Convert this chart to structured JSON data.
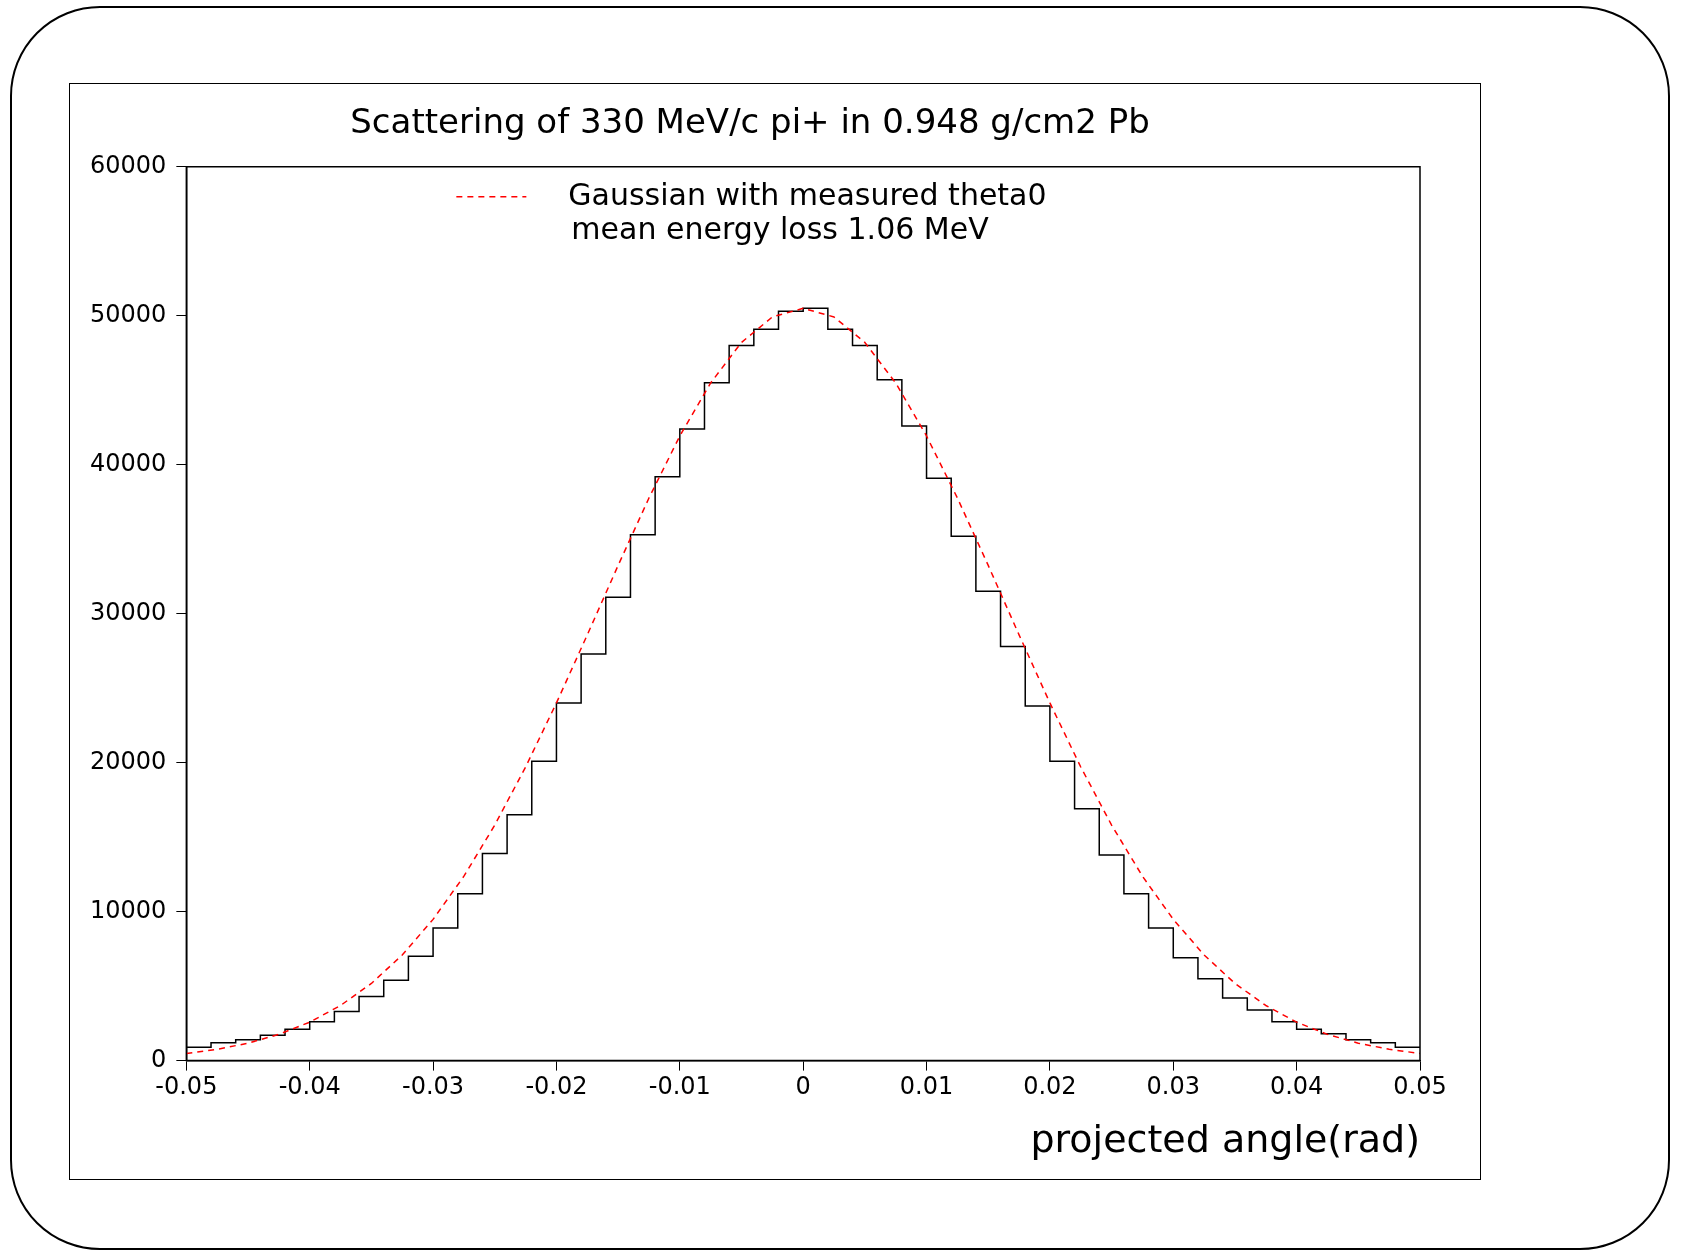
{
  "chart_data": {
    "type": "histogram",
    "title": "Scattering of 330 MeV/c pi+ in 0.948 g/cm2 Pb",
    "xlabel": "projected angle(rad)",
    "bins": [
      -0.05,
      -0.048,
      -0.046,
      -0.044,
      -0.042,
      -0.04,
      -0.038,
      -0.036,
      -0.034,
      -0.032,
      -0.03,
      -0.028,
      -0.026,
      -0.024,
      -0.022,
      -0.02,
      -0.018,
      -0.016,
      -0.014,
      -0.012,
      -0.01,
      -0.008,
      -0.006,
      -0.004,
      -0.002,
      0,
      0.002,
      0.004,
      0.006,
      0.008,
      0.01,
      0.012,
      0.014,
      0.016,
      0.018,
      0.02,
      0.022,
      0.024,
      0.026,
      0.028,
      0.03,
      0.032,
      0.034,
      0.036,
      0.038,
      0.04,
      0.042,
      0.044,
      0.046,
      0.048,
      0.05
    ],
    "series": [
      {
        "color": "#000000",
        "values": [
          900,
          1200,
          1400,
          1700,
          2100,
          2600,
          3300,
          4300,
          5400,
          7000,
          8900,
          11200,
          13900,
          16500,
          20100,
          24000,
          27300,
          31100,
          35300,
          39200,
          42400,
          45500,
          48000,
          49100,
          50300,
          50500,
          49100,
          48000,
          45700,
          42600,
          39100,
          35200,
          31500,
          27800,
          23800,
          20100,
          16900,
          13800,
          11200,
          8900,
          6900,
          5500,
          4200,
          3400,
          2600,
          2100,
          1800,
          1400,
          1200,
          900
        ]
      },
      {
        "type": "line",
        "name": "Gaussian with measured theta0",
        "color": "#ff0000",
        "line_style": "dashed",
        "marker": "none",
        "x": [
          -0.05,
          -0.0475,
          -0.045,
          -0.0425,
          -0.04,
          -0.0375,
          -0.035,
          -0.0325,
          -0.03,
          -0.0275,
          -0.025,
          -0.0225,
          -0.02,
          -0.0175,
          -0.015,
          -0.0125,
          -0.01,
          -0.0075,
          -0.005,
          -0.0025,
          0,
          0.0025,
          0.005,
          0.0075,
          0.01,
          0.0125,
          0.015,
          0.0175,
          0.02,
          0.0225,
          0.025,
          0.0275,
          0.03,
          0.0325,
          0.035,
          0.0375,
          0.04,
          0.0425,
          0.045,
          0.0475,
          0.05
        ],
        "values": [
          480,
          760,
          1170,
          1760,
          2580,
          3700,
          5180,
          7090,
          9480,
          12380,
          15810,
          19710,
          24010,
          28580,
          33240,
          37770,
          41930,
          45490,
          48210,
          49920,
          50500,
          49920,
          48210,
          45490,
          41930,
          37770,
          33240,
          28580,
          24010,
          19710,
          15810,
          12380,
          9480,
          7090,
          5180,
          3700,
          2580,
          1760,
          1170,
          760,
          480
        ]
      }
    ],
    "annotations": [
      "mean energy loss 1.06 MeV"
    ],
    "xlim": [
      -0.05,
      0.05
    ],
    "xticks": [
      -0.05,
      -0.04,
      -0.03,
      -0.02,
      -0.01,
      0,
      0.01,
      0.02,
      0.03,
      0.04,
      0.05
    ],
    "ylim": [
      0,
      60000
    ],
    "yticks": [
      0,
      10000,
      20000,
      30000,
      40000,
      50000,
      60000
    ],
    "grid": false,
    "legend": "top"
  }
}
